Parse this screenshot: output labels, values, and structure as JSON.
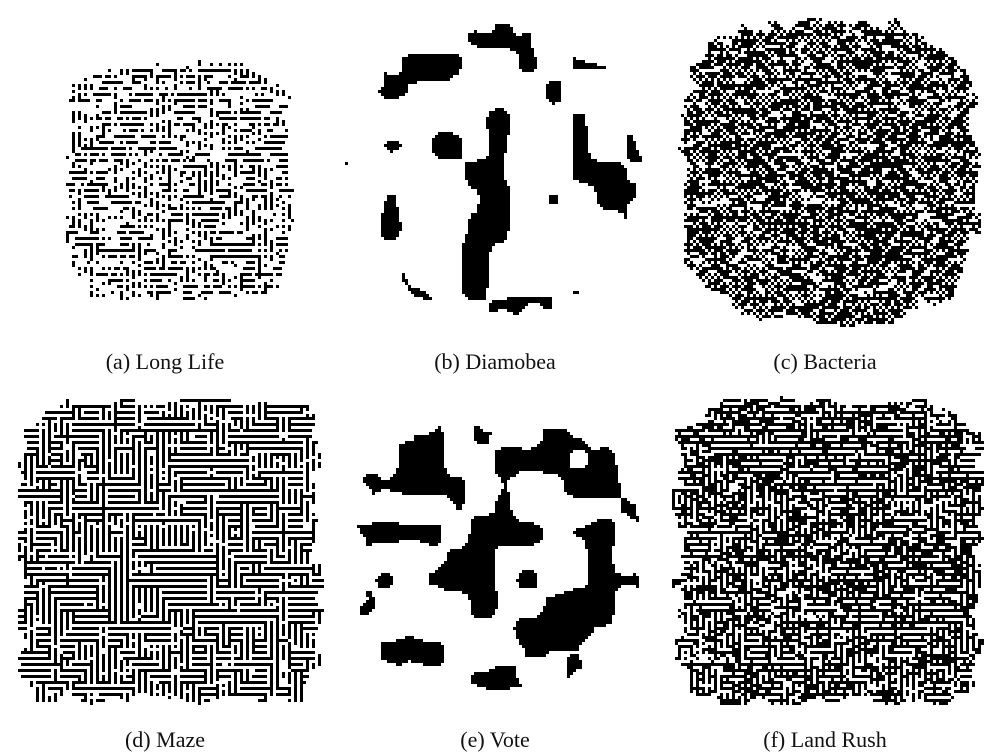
{
  "figure": {
    "panels": [
      {
        "label": "(a)",
        "title": "Long Life"
      },
      {
        "label": "(b)",
        "title": "Diamobea"
      },
      {
        "label": "(c)",
        "title": "Bacteria"
      },
      {
        "label": "(d)",
        "title": "Maze"
      },
      {
        "label": "(e)",
        "title": "Vote"
      },
      {
        "label": "(f)",
        "title": "Land Rush"
      }
    ]
  }
}
